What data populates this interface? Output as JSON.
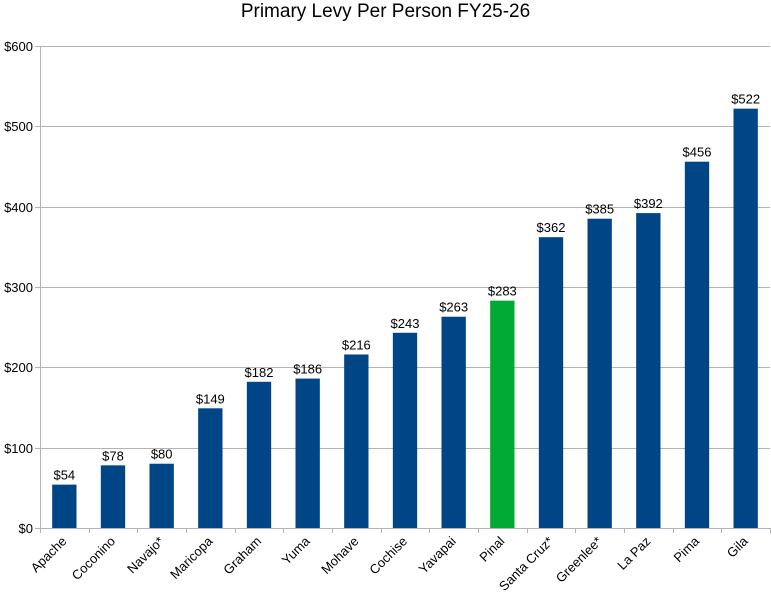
{
  "chart_data": {
    "type": "bar",
    "title": "Primary Levy Per Person FY25-26",
    "xlabel": "",
    "ylabel": "",
    "ylim": [
      0,
      600
    ],
    "y_ticks": [
      0,
      100,
      200,
      300,
      400,
      500,
      600
    ],
    "y_tick_labels": [
      "$0",
      "$100",
      "$200",
      "$300",
      "$400",
      "$500",
      "$600"
    ],
    "grid": true,
    "legend": "none",
    "categories": [
      "Apache",
      "Coconino",
      "Navajo*",
      "Maricopa",
      "Graham",
      "Yuma",
      "Mohave",
      "Cochise",
      "Yavapai",
      "Pinal",
      "Santa Cruz*",
      "Greenlee*",
      "La Paz",
      "Pima",
      "Gila"
    ],
    "values": [
      54,
      78,
      80,
      149,
      182,
      186,
      216,
      243,
      263,
      283,
      362,
      385,
      392,
      456,
      522
    ],
    "data_labels": [
      "$54",
      "$78",
      "$80",
      "$149",
      "$182",
      "$186",
      "$216",
      "$243",
      "$263",
      "$283",
      "$362",
      "$385",
      "$392",
      "$456",
      "$522"
    ],
    "colors": {
      "default": "#004586",
      "highlight": "#00a933",
      "highlight_category": "Pinal"
    }
  }
}
